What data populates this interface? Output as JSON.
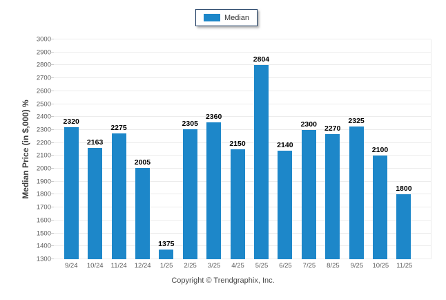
{
  "legend": {
    "items": [
      {
        "label": "Median",
        "color": "#1d87c9"
      }
    ],
    "border_color": "#17375e"
  },
  "footer": {
    "copyright": "Copyright © Trendgraphix, Inc."
  },
  "chart_data": {
    "type": "bar",
    "title": "",
    "xlabel": "",
    "ylabel": "Median Price (in $,000) %",
    "categories": [
      "9/24",
      "10/24",
      "11/24",
      "12/24",
      "1/25",
      "2/25",
      "3/25",
      "4/25",
      "5/25",
      "6/25",
      "7/25",
      "8/25",
      "9/25",
      "10/25",
      "11/25"
    ],
    "series": [
      {
        "name": "Median",
        "color": "#1d87c9",
        "values": [
          2320,
          2163,
          2275,
          2005,
          1375,
          2305,
          2360,
          2150,
          2804,
          2140,
          2300,
          2270,
          2325,
          2100,
          1800
        ]
      }
    ],
    "ylim": [
      1300,
      3000
    ],
    "ytick_step": 100,
    "grid": true,
    "gridline_color": "#ececec",
    "tick_color": "#c9c9c9",
    "axis_text_color": "#595959",
    "legend_position": "top-center"
  }
}
